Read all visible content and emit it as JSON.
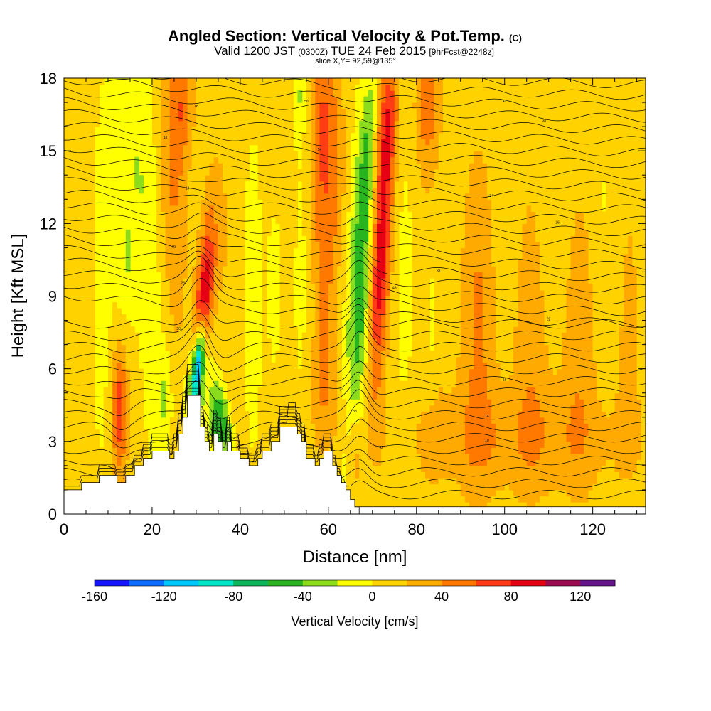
{
  "chart_data": {
    "type": "heatmap",
    "title": "Angled Section: Vertical Velocity & Pot.Temp.",
    "title_units": "(C)",
    "subtitle_parts": [
      "Valid 1200 JST",
      "(0300Z)",
      "TUE 24 Feb 2015",
      "[9hrFcst@2248z]"
    ],
    "slice_label": "slice X,Y= 92,59@135°",
    "xlabel": "Distance [nm]",
    "ylabel": "Height [Kft MSL]",
    "xlim": [
      0,
      132
    ],
    "ylim": [
      0,
      18
    ],
    "xticks": [
      0,
      20,
      40,
      60,
      80,
      100,
      120
    ],
    "yticks": [
      0,
      3,
      6,
      9,
      12,
      15,
      18
    ],
    "colorbar": {
      "label": "Vertical Velocity [cm/s]",
      "levels": [
        -160,
        -140,
        -120,
        -100,
        -80,
        -60,
        -40,
        -20,
        0,
        20,
        40,
        60,
        80,
        100,
        120,
        140
      ],
      "tick_values": [
        -160,
        -120,
        -80,
        -40,
        0,
        40,
        80,
        120
      ],
      "colors": [
        "#1414ff",
        "#0a6eff",
        "#00c8ff",
        "#00e6c8",
        "#10b45a",
        "#28b41e",
        "#8cdc1e",
        "#ffff00",
        "#ffd200",
        "#ffaa00",
        "#ff7800",
        "#ff3c14",
        "#e60014",
        "#a00a50",
        "#64148c"
      ]
    },
    "terrain": [
      [
        0,
        1.0
      ],
      [
        4,
        1.0
      ],
      [
        4,
        1.3
      ],
      [
        8,
        1.3
      ],
      [
        8,
        1.6
      ],
      [
        12,
        1.6
      ],
      [
        12,
        1.3
      ],
      [
        14,
        1.3
      ],
      [
        14,
        1.6
      ],
      [
        16,
        1.6
      ],
      [
        16,
        2.0
      ],
      [
        18,
        2.0
      ],
      [
        18,
        2.3
      ],
      [
        20,
        2.3
      ],
      [
        20,
        2.6
      ],
      [
        24,
        2.6
      ],
      [
        24,
        2.3
      ],
      [
        25,
        2.3
      ],
      [
        25,
        2.6
      ],
      [
        26,
        2.6
      ],
      [
        26,
        3.3
      ],
      [
        27,
        3.3
      ],
      [
        27,
        4.0
      ],
      [
        28,
        4.0
      ],
      [
        28,
        4.9
      ],
      [
        31,
        4.9
      ],
      [
        31,
        3.6
      ],
      [
        32,
        3.6
      ],
      [
        32,
        3.0
      ],
      [
        33,
        3.0
      ],
      [
        33,
        2.6
      ],
      [
        34,
        2.6
      ],
      [
        34,
        3.3
      ],
      [
        35,
        3.3
      ],
      [
        35,
        3.0
      ],
      [
        36,
        3.0
      ],
      [
        36,
        2.6
      ],
      [
        37,
        2.6
      ],
      [
        37,
        3.0
      ],
      [
        38,
        3.0
      ],
      [
        38,
        2.6
      ],
      [
        40,
        2.6
      ],
      [
        40,
        2.3
      ],
      [
        42,
        2.3
      ],
      [
        42,
        2.0
      ],
      [
        44,
        2.0
      ],
      [
        44,
        2.3
      ],
      [
        45,
        2.3
      ],
      [
        45,
        2.6
      ],
      [
        47,
        2.6
      ],
      [
        47,
        3.0
      ],
      [
        49,
        3.0
      ],
      [
        49,
        3.6
      ],
      [
        53,
        3.6
      ],
      [
        53,
        3.3
      ],
      [
        54,
        3.3
      ],
      [
        54,
        3.0
      ],
      [
        55,
        3.0
      ],
      [
        55,
        2.3
      ],
      [
        57,
        2.3
      ],
      [
        57,
        2.0
      ],
      [
        58,
        2.0
      ],
      [
        58,
        2.3
      ],
      [
        59,
        2.3
      ],
      [
        59,
        2.6
      ],
      [
        61,
        2.6
      ],
      [
        61,
        2.0
      ],
      [
        62,
        2.0
      ],
      [
        62,
        1.6
      ],
      [
        63,
        1.6
      ],
      [
        63,
        1.3
      ],
      [
        64,
        1.3
      ],
      [
        64,
        1.0
      ],
      [
        65,
        1.0
      ],
      [
        65,
        0.6
      ],
      [
        66,
        0.6
      ],
      [
        66,
        0.3
      ],
      [
        67,
        0.3
      ],
      [
        67,
        0
      ],
      [
        0,
        0
      ]
    ],
    "vv_field": [
      {
        "x": 31.5,
        "z": 8.4,
        "value": 85,
        "sx": 1.3,
        "sz": 1.8,
        "tilt": 0.45
      },
      {
        "x": 30.6,
        "z": 6.4,
        "value": -115,
        "sx": 0.8,
        "sz": 1.3,
        "tilt": 0.45
      },
      {
        "x": 29.5,
        "z": 5.3,
        "value": -50,
        "sx": 1.5,
        "sz": 1.5,
        "tilt": 0.4
      },
      {
        "x": 35.5,
        "z": 3.8,
        "value": -70,
        "sx": 1.6,
        "sz": 1.2,
        "tilt": -0.5
      },
      {
        "x": 32.5,
        "z": 11.0,
        "value": 45,
        "sx": 1.8,
        "sz": 2.5,
        "tilt": 0.3
      },
      {
        "x": 72.0,
        "z": 11.2,
        "value": 80,
        "sx": 1.6,
        "sz": 4.2,
        "tilt": 0.28
      },
      {
        "x": 73.5,
        "z": 16.5,
        "value": 40,
        "sx": 1.8,
        "sz": 1.8,
        "tilt": 0.2
      },
      {
        "x": 67.5,
        "z": 9.8,
        "value": -55,
        "sx": 1.8,
        "sz": 4.2,
        "tilt": 0.25
      },
      {
        "x": 69.0,
        "z": 15.5,
        "value": -30,
        "sx": 1.4,
        "sz": 2.2,
        "tilt": 0.3
      },
      {
        "x": 12.5,
        "z": 4.2,
        "value": 65,
        "sx": 1.2,
        "sz": 1.8,
        "tilt": 0
      },
      {
        "x": 15.5,
        "z": 14.5,
        "value": -30,
        "sx": 3.2,
        "sz": 4.2,
        "tilt": -0.15
      },
      {
        "x": 14.0,
        "z": 10.0,
        "value": -25,
        "sx": 1.5,
        "sz": 1.8,
        "tilt": 0
      },
      {
        "x": 23.0,
        "z": 4.8,
        "value": -30,
        "sx": 1.2,
        "sz": 1.5,
        "tilt": 0
      },
      {
        "x": 24.5,
        "z": 14.5,
        "value": 30,
        "sx": 2.5,
        "sz": 3.5,
        "tilt": 0
      },
      {
        "x": 27.0,
        "z": 17.0,
        "value": 35,
        "sx": 2.0,
        "sz": 1.5,
        "tilt": 0
      },
      {
        "x": 48.0,
        "z": 9.3,
        "value": -28,
        "sx": 1.3,
        "sz": 2.8,
        "tilt": 0
      },
      {
        "x": 53.5,
        "z": 17.2,
        "value": -25,
        "sx": 1.0,
        "sz": 1.2,
        "tilt": 0
      },
      {
        "x": 58.5,
        "z": 16.5,
        "value": 45,
        "sx": 2.0,
        "sz": 2.5,
        "tilt": 0
      },
      {
        "x": 58.5,
        "z": 11.0,
        "value": 30,
        "sx": 2.0,
        "sz": 3.0,
        "tilt": 0
      },
      {
        "x": 62.0,
        "z": 14.5,
        "value": 25,
        "sx": 1.8,
        "sz": 3.0,
        "tilt": 0
      },
      {
        "x": 83.5,
        "z": 8.2,
        "value": -28,
        "sx": 1.2,
        "sz": 2.5,
        "tilt": 0.1
      },
      {
        "x": 82.5,
        "z": 17.0,
        "value": 45,
        "sx": 2.0,
        "sz": 1.8,
        "tilt": 0.1
      },
      {
        "x": 58.5,
        "z": 5.0,
        "value": 25,
        "sx": 2.5,
        "sz": 2.0,
        "tilt": 0
      },
      {
        "x": 66.0,
        "z": 2.2,
        "value": 30,
        "sx": 1.0,
        "sz": 1.5,
        "tilt": 0
      },
      {
        "x": 102.0,
        "z": 3.0,
        "value": 22,
        "sx": 20.0,
        "sz": 1.5,
        "tilt": 0
      },
      {
        "x": 112.0,
        "z": 6.0,
        "value": 20,
        "sx": 12.0,
        "sz": 4.0,
        "tilt": 0
      },
      {
        "x": 92.0,
        "z": 8.0,
        "value": 22,
        "sx": 5.0,
        "sz": 5.0,
        "tilt": 0
      },
      {
        "x": 60.0,
        "z": 1.5,
        "value": -8,
        "sx": 5.0,
        "sz": 1.0,
        "tilt": 0
      }
    ],
    "theta_contour_labels": [
      "10",
      "14",
      "18",
      "22",
      "26",
      "30",
      "34",
      "38",
      "42",
      "46",
      "50",
      "54"
    ]
  }
}
